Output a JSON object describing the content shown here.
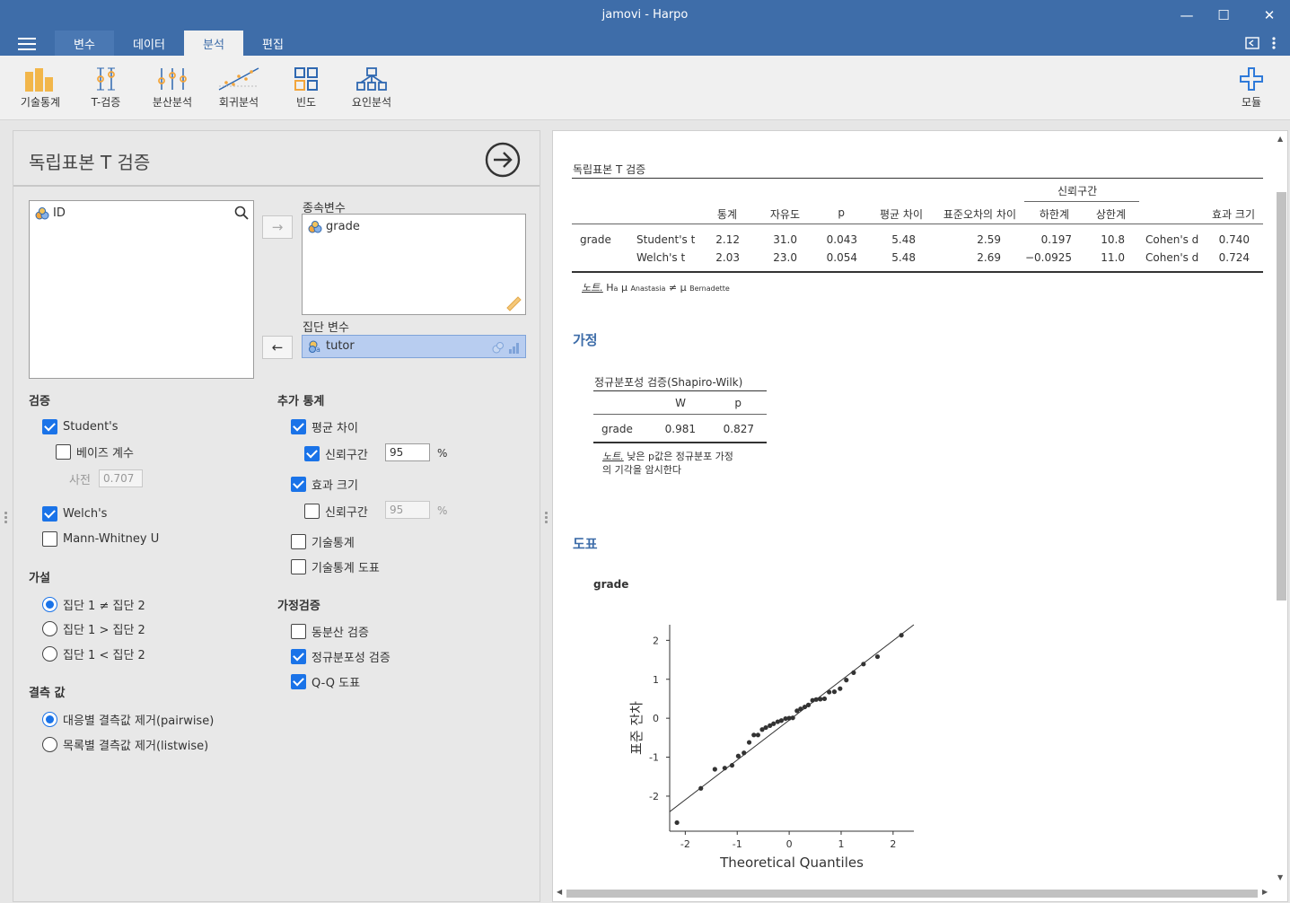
{
  "window": {
    "title": "jamovi - Harpo",
    "minimize": "—",
    "maximize": "☐",
    "close": "✕"
  },
  "tabs": [
    {
      "label": "변수"
    },
    {
      "label": "데이터"
    },
    {
      "label": "분석"
    },
    {
      "label": "편집"
    }
  ],
  "ribbon": {
    "items": [
      {
        "label": "기술통계",
        "icon": "bar-chart-icon"
      },
      {
        "label": "T-검증",
        "icon": "t-test-icon"
      },
      {
        "label": "분산분석",
        "icon": "anova-icon"
      },
      {
        "label": "회귀분석",
        "icon": "regression-icon"
      },
      {
        "label": "빈도",
        "icon": "frequencies-icon"
      },
      {
        "label": "요인분석",
        "icon": "factor-icon"
      }
    ],
    "modules": "모듈"
  },
  "analysis": {
    "title": "독립표본 T 검증",
    "available_vars": [
      "ID"
    ],
    "dependent_label": "종속변수",
    "dependent_vars": [
      "grade"
    ],
    "group_label": "집단 변수",
    "group_var": "tutor",
    "tests": {
      "header": "검증",
      "students": "Student's",
      "bayes": "베이즈 계수",
      "prior_label": "사전",
      "prior_value": "0.707",
      "welchs": "Welch's",
      "mann": "Mann-Whitney U"
    },
    "hypothesis": {
      "header": "가설",
      "options": [
        "집단 1 ≠ 집단 2",
        "집단 1 > 집단 2",
        "집단 1 < 집단 2"
      ]
    },
    "missing": {
      "header": "결측 값",
      "options": [
        "대응별 결측값 제거(pairwise)",
        "목록별 결측값 제거(listwise)"
      ]
    },
    "additional": {
      "header": "추가 통계",
      "mean_diff": "평균 차이",
      "ci": "신뢰구간",
      "ci_value": "95",
      "pct": "%",
      "effect": "효과 크기",
      "ci2": "신뢰구간",
      "ci2_value": "95",
      "pct2": "%",
      "desc": "기술통계",
      "desc_plot": "기술통계 도표"
    },
    "assumption": {
      "header": "가정검증",
      "homog": "동분산 검증",
      "normal": "정규분포성 검증",
      "qq": "Q-Q 도표"
    }
  },
  "results": {
    "ttest_title": "독립표본 T 검증",
    "ci_group": "신뢰구간",
    "columns": [
      "통계",
      "자유도",
      "p",
      "평균 차이",
      "표준오차의 차이",
      "하한계",
      "상한계",
      "효과 크기"
    ],
    "rows": [
      {
        "var": "grade",
        "test": "Student's t",
        "stat": "2.12",
        "df": "31.0",
        "p": "0.043",
        "md": "5.48",
        "se": "2.59",
        "lo": "0.197",
        "hi": "10.8",
        "es_name": "Cohen's d",
        "es": "0.740"
      },
      {
        "var": "",
        "test": "Welch's t",
        "stat": "2.03",
        "df": "23.0",
        "p": "0.054",
        "md": "5.48",
        "se": "2.69",
        "lo": "−0.0925",
        "hi": "11.0",
        "es_name": "Cohen's d",
        "es": "0.724"
      }
    ],
    "note_label": "노트.",
    "note_text": "H",
    "note_sub_a": "a",
    "note_mu1": "μ",
    "note_sub1": "Anastasia",
    "note_ne": "≠",
    "note_mu2": "μ",
    "note_sub2": "Bernadette",
    "assumptions_header": "가정",
    "sw_title": "정규분포성 검증(Shapiro-Wilk)",
    "sw_cols": [
      "W",
      "p"
    ],
    "sw_row": {
      "var": "grade",
      "w": "0.981",
      "p": "0.827"
    },
    "sw_note_label": "노트.",
    "sw_note_line1": "낮은 p값은 정규분포 가정",
    "sw_note_line2": "의 기각을 암시한다",
    "plots_header": "도표",
    "plot_var": "grade"
  },
  "chart_data": {
    "type": "scatter",
    "title": "",
    "xlabel": "Theoretical Quantiles",
    "ylabel": "표준 잔차",
    "xlim": [
      -2.3,
      2.4
    ],
    "ylim": [
      -2.9,
      2.4
    ],
    "xticks": [
      "-2",
      "-1",
      "0",
      "1",
      "2"
    ],
    "yticks": [
      "2",
      "1",
      "0",
      "-1",
      "-2"
    ],
    "points": [
      [
        -2.16,
        -2.68
      ],
      [
        -1.7,
        -1.8
      ],
      [
        -1.43,
        -1.31
      ],
      [
        -1.24,
        -1.28
      ],
      [
        -1.1,
        -1.21
      ],
      [
        -0.98,
        -0.97
      ],
      [
        -0.87,
        -0.89
      ],
      [
        -0.77,
        -0.62
      ],
      [
        -0.68,
        -0.43
      ],
      [
        -0.6,
        -0.43
      ],
      [
        -0.52,
        -0.29
      ],
      [
        -0.45,
        -0.24
      ],
      [
        -0.37,
        -0.19
      ],
      [
        -0.3,
        -0.14
      ],
      [
        -0.22,
        -0.09
      ],
      [
        -0.15,
        -0.06
      ],
      [
        -0.07,
        -0.01
      ],
      [
        0.0,
        0.0
      ],
      [
        0.07,
        0.01
      ],
      [
        0.15,
        0.19
      ],
      [
        0.22,
        0.24
      ],
      [
        0.3,
        0.29
      ],
      [
        0.37,
        0.34
      ],
      [
        0.45,
        0.46
      ],
      [
        0.52,
        0.48
      ],
      [
        0.6,
        0.49
      ],
      [
        0.68,
        0.5
      ],
      [
        0.77,
        0.67
      ],
      [
        0.87,
        0.68
      ],
      [
        0.98,
        0.76
      ],
      [
        1.1,
        0.98
      ],
      [
        1.24,
        1.17
      ],
      [
        1.43,
        1.39
      ],
      [
        1.7,
        1.58
      ],
      [
        2.16,
        2.13
      ]
    ],
    "line": [
      [
        -2.3,
        -2.4
      ],
      [
        2.4,
        2.4
      ]
    ]
  }
}
